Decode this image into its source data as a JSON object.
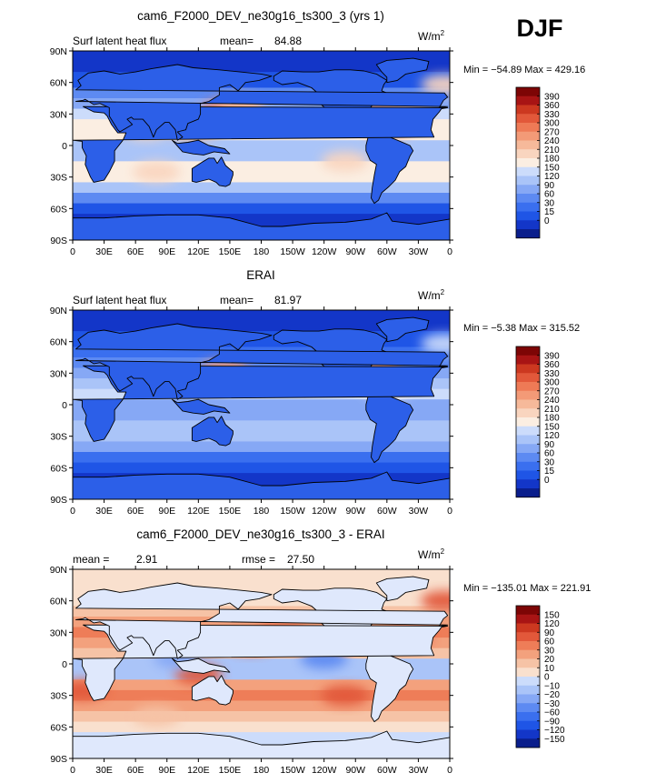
{
  "season": "DJF",
  "colors": {
    "seq": [
      "#0a1e8c",
      "#1336c8",
      "#1f55e6",
      "#3a6fef",
      "#5d8af2",
      "#86a8f5",
      "#aac4f8",
      "#ccdcfb",
      "#fbeee2",
      "#f9d5bf",
      "#f6b99a",
      "#f39a77",
      "#ee7a56",
      "#e2583a",
      "#cc3820",
      "#a81414",
      "#7d0505"
    ],
    "diff": [
      "#0a1e8c",
      "#1336c8",
      "#1f55e6",
      "#3a6fef",
      "#5d8af2",
      "#86a8f5",
      "#aac4f8",
      "#ccdcfb",
      "#f9e0ce",
      "#f6c3a6",
      "#f3a17d",
      "#ee7d58",
      "#e2583a",
      "#cc3820",
      "#a81414",
      "#7d0505"
    ]
  },
  "chart_data": [
    {
      "type": "heatmap",
      "title": "cam6_F2000_DEV_ne30g16_ts300_3 (yrs 1)",
      "variable_label": "Surf latent heat flux",
      "stat_label": "mean=",
      "stat_value": "84.88",
      "units_base": "W/m",
      "units_exp": "2",
      "min_max_text": "Min = −54.89 Max = 429.16",
      "lat_ticks": [
        "90N",
        "60N",
        "30N",
        "0",
        "30S",
        "60S",
        "90S"
      ],
      "lon_ticks": [
        "0",
        "30E",
        "60E",
        "90E",
        "120E",
        "150E",
        "180",
        "150W",
        "120W",
        "90W",
        "60W",
        "30W",
        "0"
      ],
      "colorbar_levels": [
        "390",
        "360",
        "330",
        "300",
        "270",
        "240",
        "210",
        "180",
        "150",
        "120",
        "90",
        "60",
        "30",
        "15",
        "0"
      ],
      "bands": {
        "lats": [
          90,
          70,
          55,
          45,
          35,
          25,
          15,
          5,
          -5,
          -15,
          -25,
          -35,
          -45,
          -55,
          -65,
          -80,
          -90
        ],
        "ocean_levels": [
          1,
          2,
          4,
          5,
          7,
          8,
          8,
          6,
          6,
          8,
          8,
          6,
          4,
          2,
          1,
          0,
          0
        ]
      },
      "hotspots": [
        {
          "lon": 145,
          "lat": 33,
          "level": 12
        },
        {
          "lon": 160,
          "lat": 38,
          "level": 10
        },
        {
          "lon": 115,
          "lat": 15,
          "level": 10
        },
        {
          "lon": 70,
          "lat": 15,
          "level": 9
        },
        {
          "lon": 290,
          "lat": 30,
          "level": 11
        },
        {
          "lon": 320,
          "lat": 30,
          "level": 10
        },
        {
          "lon": 300,
          "lat": 15,
          "level": 10
        },
        {
          "lon": 355,
          "lat": 58,
          "level": 9
        },
        {
          "lon": 80,
          "lat": -25,
          "level": 9
        },
        {
          "lon": 260,
          "lat": -15,
          "level": 9
        }
      ]
    },
    {
      "type": "heatmap",
      "title": "ERAI",
      "variable_label": "Surf latent heat flux",
      "stat_label": "mean=",
      "stat_value": "81.97",
      "units_base": "W/m",
      "units_exp": "2",
      "min_max_text": "Min =  −5.38 Max = 315.52",
      "lat_ticks": [
        "90N",
        "60N",
        "30N",
        "0",
        "30S",
        "60S",
        "90S"
      ],
      "lon_ticks": [
        "0",
        "30E",
        "60E",
        "90E",
        "120E",
        "150E",
        "180",
        "150W",
        "120W",
        "90W",
        "60W",
        "30W",
        "0"
      ],
      "colorbar_levels": [
        "390",
        "360",
        "330",
        "300",
        "270",
        "240",
        "210",
        "180",
        "150",
        "120",
        "90",
        "60",
        "30",
        "15",
        "0"
      ],
      "bands": {
        "lats": [
          90,
          70,
          55,
          45,
          35,
          25,
          15,
          5,
          -5,
          -15,
          -25,
          -35,
          -45,
          -55,
          -65,
          -80,
          -90
        ],
        "ocean_levels": [
          1,
          2,
          3,
          4,
          5,
          6,
          7,
          5,
          5,
          6,
          6,
          5,
          3,
          2,
          1,
          0,
          0
        ]
      },
      "hotspots": [
        {
          "lon": 145,
          "lat": 33,
          "level": 11
        },
        {
          "lon": 290,
          "lat": 32,
          "level": 11
        },
        {
          "lon": 300,
          "lat": 15,
          "level": 8
        },
        {
          "lon": 355,
          "lat": 58,
          "level": 7
        }
      ]
    },
    {
      "type": "heatmap",
      "title": "cam6_F2000_DEV_ne30g16_ts300_3 - ERAI",
      "stat_label": "mean =",
      "stat_value": "2.91",
      "rmse_label": "rmse =",
      "rmse_value": "27.50",
      "units_base": "W/m",
      "units_exp": "2",
      "min_max_text": "Min = −135.01 Max = 221.91",
      "lat_ticks": [
        "90N",
        "60N",
        "30N",
        "0",
        "30S",
        "60S",
        "90S"
      ],
      "lon_ticks": [
        "0",
        "30E",
        "60E",
        "90E",
        "120E",
        "150E",
        "180",
        "150W",
        "120W",
        "90W",
        "60W",
        "30W",
        "0"
      ],
      "colorbar_levels": [
        "150",
        "120",
        "90",
        "60",
        "30",
        "20",
        "10",
        "0",
        "−10",
        "−20",
        "−30",
        "−60",
        "−90",
        "−120",
        "−150"
      ],
      "bands": {
        "lats": [
          90,
          70,
          55,
          45,
          35,
          25,
          15,
          5,
          -5,
          -15,
          -25,
          -35,
          -45,
          -55,
          -65,
          -80,
          -90
        ],
        "ocean_levels": [
          8,
          8,
          9,
          10,
          11,
          10,
          9,
          6,
          6,
          10,
          11,
          10,
          9,
          8,
          7,
          7,
          7
        ]
      },
      "hotspots": [
        {
          "lon": 170,
          "lat": 20,
          "level": 12
        },
        {
          "lon": 200,
          "lat": 35,
          "level": 11
        },
        {
          "lon": 320,
          "lat": 25,
          "level": 12
        },
        {
          "lon": 260,
          "lat": -30,
          "level": 12
        },
        {
          "lon": 10,
          "lat": -25,
          "level": 12
        },
        {
          "lon": 120,
          "lat": -10,
          "level": 12
        },
        {
          "lon": 240,
          "lat": 5,
          "level": 4
        },
        {
          "lon": 100,
          "lat": 5,
          "level": 5
        },
        {
          "lon": 80,
          "lat": -50,
          "level": 9
        },
        {
          "lon": 355,
          "lat": 60,
          "level": 12
        }
      ]
    }
  ]
}
